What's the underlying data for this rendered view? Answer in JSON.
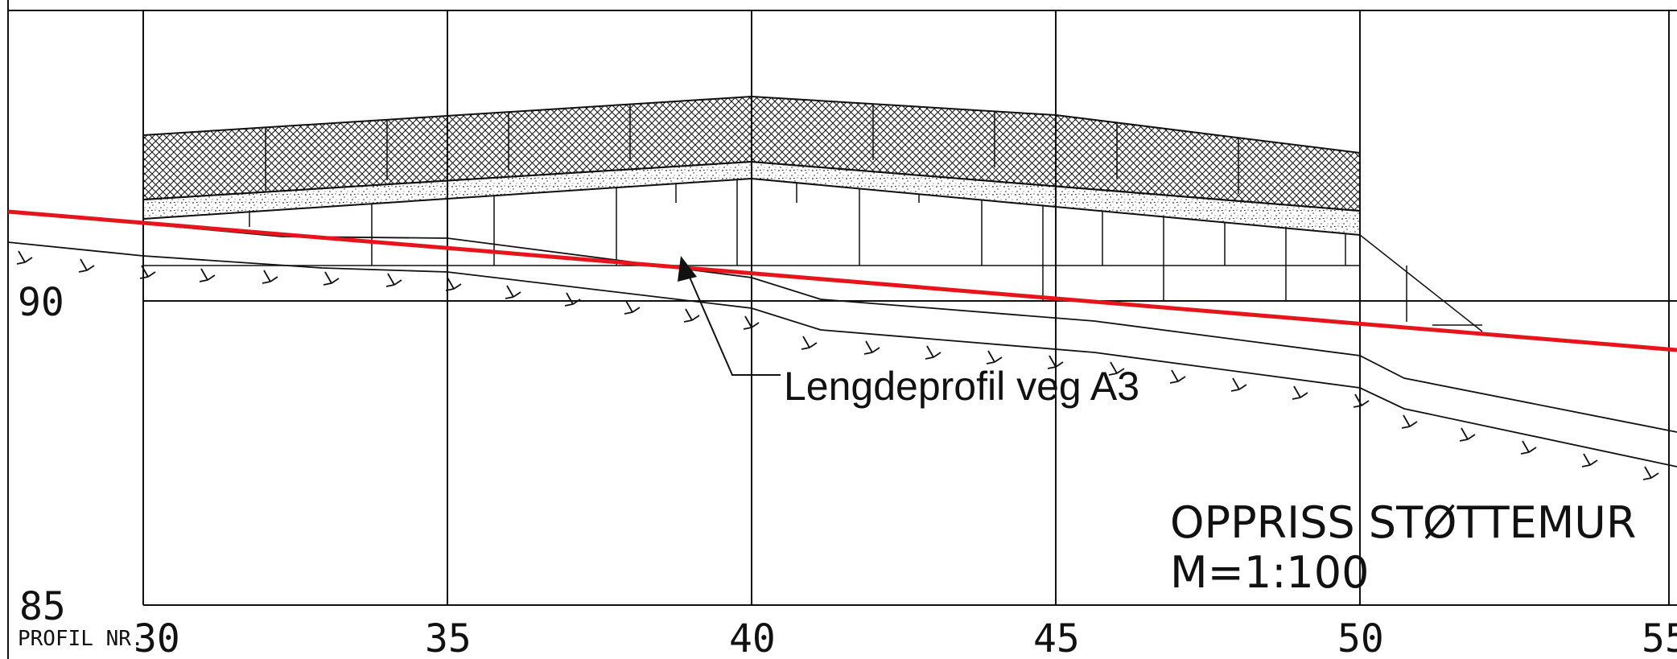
{
  "title": {
    "line1": "OPPRISS STØTTEMUR",
    "line2": "M=1:100"
  },
  "callout": {
    "label": "Lengdeprofil veg A3"
  },
  "axis": {
    "profile_label": "PROFIL NR.",
    "profile_ticks": [
      "30",
      "35",
      "40",
      "45",
      "50",
      "55"
    ],
    "elevation_labels": [
      "90",
      "85"
    ]
  },
  "colors": {
    "road_profile_line": "#e8141c",
    "ink": "#111111",
    "background": "#ffffff"
  },
  "legend_icons": {
    "hatch": "crosshatch-pattern",
    "gravel": "stipple-pattern",
    "terrain": "ground-symbol"
  }
}
